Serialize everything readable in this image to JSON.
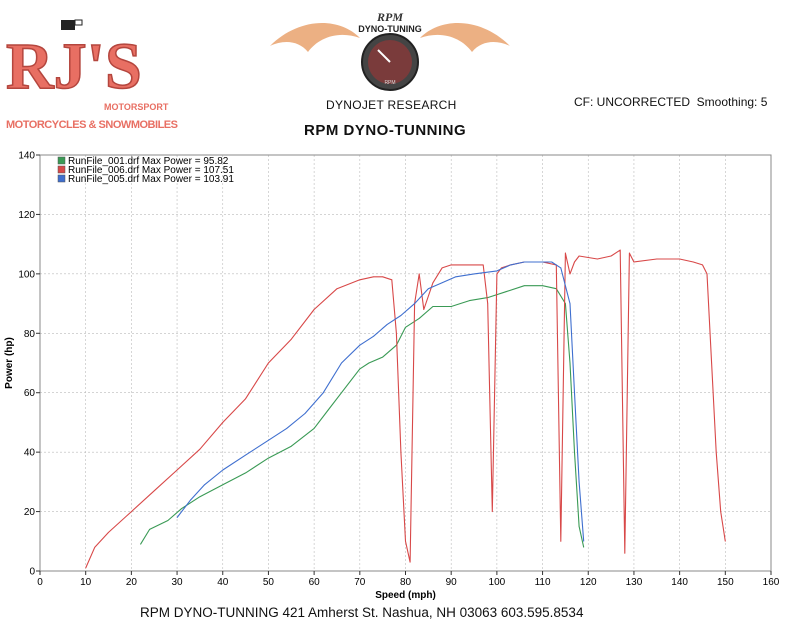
{
  "header": {
    "company_name": "RJ'S",
    "company_sub1": "MOTORSPORT",
    "company_sub2": "MOTORCYCLES & SNOWMOBILES",
    "dyno_logo_top": "RPM",
    "dyno_logo_arc": "DYNO-TUNING",
    "dyno_logo_gauge": "RPM",
    "research": "DYNOJET RESEARCH",
    "cf": "CF: UNCORRECTED",
    "smoothing": "Smoothing: 5",
    "title": "RPM DYNO-TUNNING"
  },
  "footer": {
    "text": "RPM DYNO-TUNNING  421 Amherst St. Nashua, NH 03063  603.595.8534"
  },
  "colors": {
    "run001": "#3a9a55",
    "run006": "#d84848",
    "run005": "#3f6fcf",
    "logo_red": "#e86f63",
    "flame": "#e9a26d"
  },
  "chart_data": {
    "type": "line",
    "title": "",
    "xlabel": "Speed (mph)",
    "ylabel": "Power (hp)",
    "xlim": [
      0,
      160
    ],
    "ylim": [
      0,
      140
    ],
    "xticks": [
      0,
      10,
      20,
      30,
      40,
      50,
      60,
      70,
      80,
      90,
      100,
      110,
      120,
      130,
      140,
      150,
      160
    ],
    "yticks": [
      0,
      20,
      40,
      60,
      80,
      100,
      120,
      140
    ],
    "grid": true,
    "legend_position": "top-left",
    "series": [
      {
        "name": "RunFile_001.drf Max Power = 95.82",
        "color": "#3a9a55",
        "x": [
          22,
          24,
          28,
          31,
          35,
          40,
          45,
          50,
          55,
          60,
          63,
          66,
          70,
          72,
          75,
          78,
          80,
          83,
          86,
          90,
          94,
          98,
          102,
          106,
          110,
          113,
          115,
          116,
          117,
          118,
          119
        ],
        "y": [
          9,
          14,
          17,
          21,
          25,
          29,
          33,
          38,
          42,
          48,
          54,
          60,
          68,
          70,
          72,
          76,
          82,
          85,
          89,
          89,
          91,
          92,
          94,
          96,
          96,
          95,
          90,
          70,
          40,
          15,
          8
        ]
      },
      {
        "name": "RunFile_006.drf Max Power = 107.51",
        "color": "#d84848",
        "x": [
          10,
          12,
          15,
          20,
          25,
          30,
          35,
          40,
          45,
          50,
          55,
          60,
          65,
          70,
          73,
          75,
          77,
          78,
          79,
          80,
          81,
          82,
          83,
          84,
          86,
          88,
          90,
          95,
          97,
          98,
          99,
          100,
          101,
          103,
          106,
          108,
          110,
          113,
          114,
          115,
          116,
          117,
          118,
          122,
          125,
          127,
          128,
          129,
          130,
          135,
          140,
          143,
          145,
          146,
          147,
          148,
          149,
          150
        ],
        "y": [
          1,
          8,
          13,
          20,
          27,
          34,
          41,
          50,
          58,
          70,
          78,
          88,
          95,
          98,
          99,
          99,
          98,
          80,
          40,
          10,
          3,
          90,
          100,
          88,
          97,
          102,
          103,
          103,
          103,
          90,
          20,
          100,
          102,
          103,
          104,
          104,
          104,
          103,
          10,
          107,
          100,
          104,
          106,
          105,
          106,
          108,
          6,
          107,
          104,
          105,
          105,
          104,
          103,
          100,
          70,
          40,
          20,
          10
        ]
      },
      {
        "name": "RunFile_005.drf Max Power = 103.91",
        "color": "#3f6fcf",
        "x": [
          30,
          33,
          36,
          40,
          45,
          50,
          54,
          58,
          62,
          66,
          70,
          73,
          76,
          79,
          82,
          85,
          88,
          91,
          95,
          100,
          103,
          106,
          109,
          112,
          114,
          116,
          117,
          118,
          119
        ],
        "y": [
          18,
          24,
          29,
          34,
          39,
          44,
          48,
          53,
          60,
          70,
          76,
          79,
          83,
          86,
          90,
          95,
          97,
          99,
          100,
          101,
          103,
          104,
          104,
          104,
          102,
          90,
          60,
          30,
          10
        ]
      }
    ]
  }
}
